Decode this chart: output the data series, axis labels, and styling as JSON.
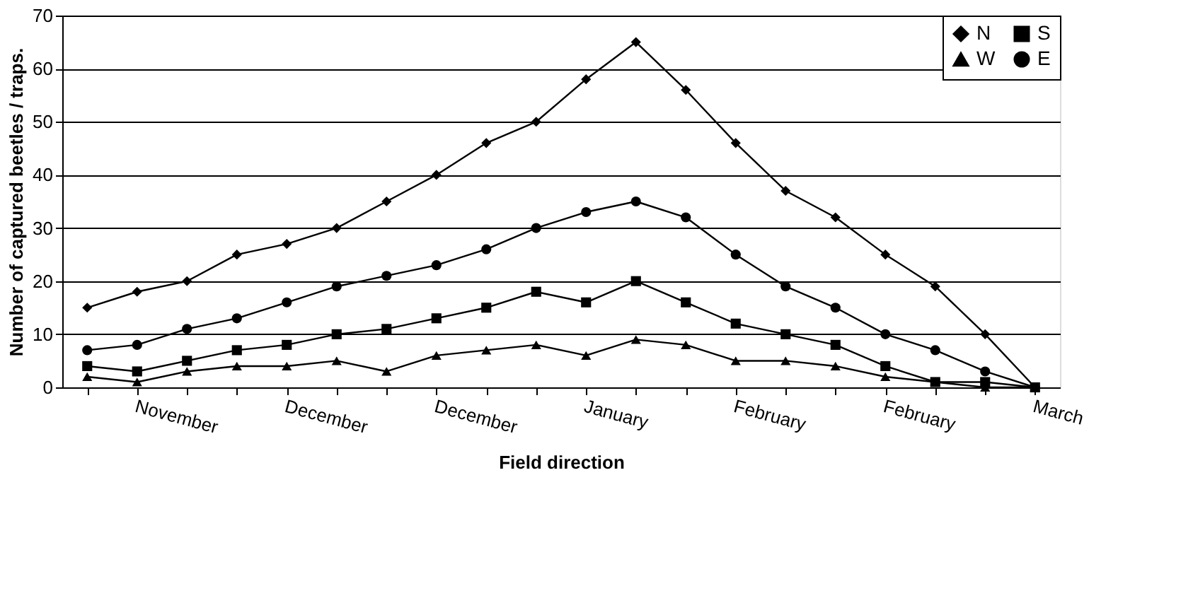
{
  "chart_data": {
    "type": "line",
    "xlabel": "Field direction",
    "ylabel": "Number of captured beetles / traps.",
    "categories": [
      null,
      "November",
      null,
      null,
      "December",
      null,
      null,
      "December",
      null,
      null,
      "January",
      null,
      null,
      "February",
      null,
      null,
      "February",
      null,
      null,
      "March"
    ],
    "ylim": [
      0,
      70
    ],
    "yticks": [
      0,
      10,
      20,
      30,
      40,
      50,
      60,
      70
    ],
    "grid": "y",
    "legend": "top right",
    "line_style": "solid",
    "series": [
      {
        "name": "N",
        "color": "#000000",
        "marker": "diamond",
        "values": [
          15,
          18,
          20,
          25,
          27,
          30,
          35,
          40,
          46,
          50,
          58,
          65,
          56,
          46,
          37,
          32,
          25,
          19,
          10,
          0
        ]
      },
      {
        "name": "S",
        "color": "#000000",
        "marker": "square",
        "values": [
          4,
          3,
          5,
          7,
          8,
          10,
          11,
          13,
          15,
          18,
          16,
          20,
          16,
          12,
          10,
          8,
          4,
          1,
          1,
          0
        ]
      },
      {
        "name": "W",
        "color": "#000000",
        "marker": "triangle",
        "values": [
          2,
          1,
          3,
          4,
          4,
          5,
          3,
          6,
          7,
          8,
          6,
          9,
          8,
          5,
          5,
          4,
          2,
          1,
          0,
          0
        ]
      },
      {
        "name": "E",
        "color": "#000000",
        "marker": "circle",
        "values": [
          7,
          8,
          11,
          13,
          16,
          19,
          21,
          23,
          26,
          30,
          33,
          35,
          32,
          25,
          19,
          15,
          10,
          7,
          3,
          0
        ]
      }
    ]
  }
}
